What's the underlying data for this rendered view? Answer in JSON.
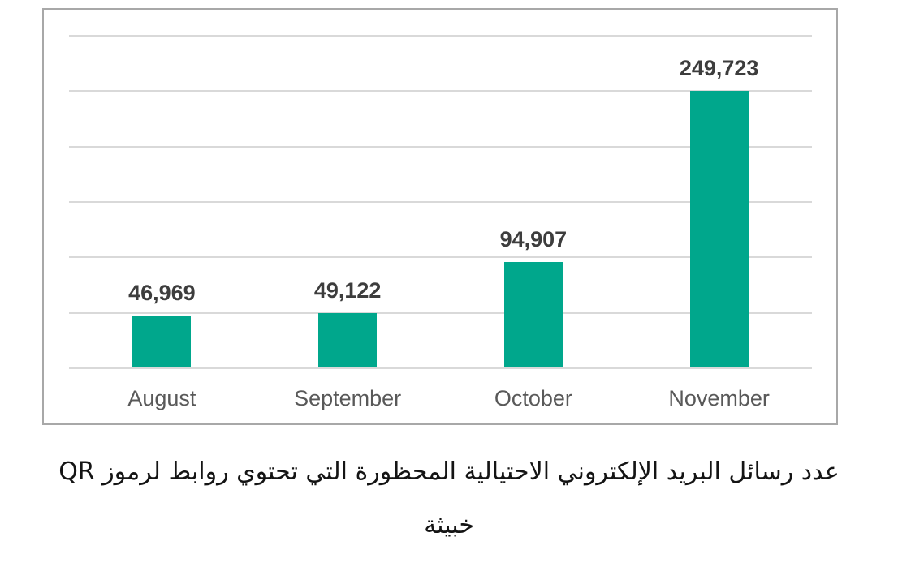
{
  "page": {
    "background": "#ffffff"
  },
  "chart_data": {
    "type": "bar",
    "categories": [
      "August",
      "September",
      "October",
      "November"
    ],
    "values": [
      46969,
      49122,
      94907,
      249723
    ],
    "value_labels": [
      "46,969",
      "49,122",
      "94,907",
      "249,723"
    ],
    "title": "",
    "xlabel": "",
    "ylabel": "",
    "ylim": [
      0,
      300000
    ],
    "gridline_interval": 50000,
    "grid": true,
    "legend": false,
    "bar_color": "#00a78c",
    "value_label_color": "#3d3d3d",
    "category_label_color": "#595959",
    "gridline_color": "#d9d9d9",
    "frame_border_color": "#a8a8a8"
  },
  "caption": {
    "line1": "عدد رسائل البريد الإلكتروني الاحتيالية المحظورة التي تحتوي روابط لرموز QR",
    "line2": "خبيثة"
  }
}
